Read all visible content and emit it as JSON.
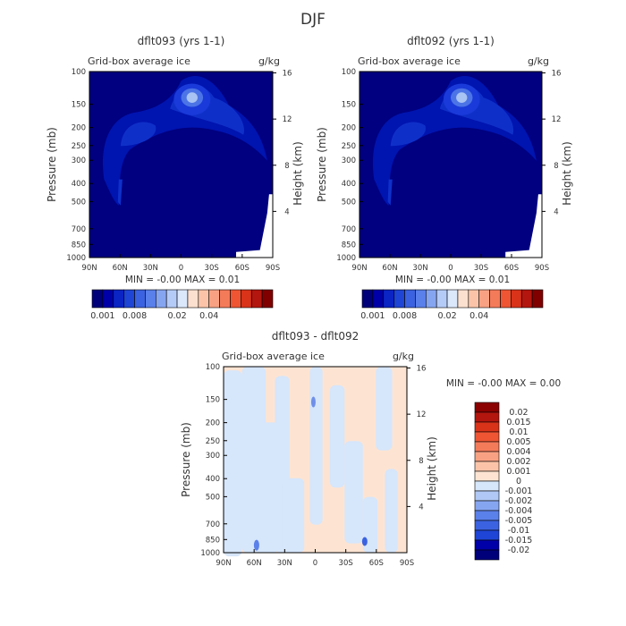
{
  "figure": {
    "title": "DJF"
  },
  "chart_data": [
    {
      "type": "heatmap",
      "title": "dflt093 (yrs 1-1)",
      "subtitle": "Grid-box average ice",
      "units": "g/kg",
      "ylabel": "Pressure (mb)",
      "y2label": "Height (km)",
      "xticks": [
        "90N",
        "60N",
        "30N",
        "0",
        "30S",
        "60S",
        "90S"
      ],
      "yticks": [
        "100",
        "150",
        "200",
        "250",
        "300",
        "400",
        "500",
        "700",
        "850",
        "1000"
      ],
      "y2ticks": [
        "16",
        "12",
        "8",
        "4"
      ],
      "ylim": [
        1000,
        100
      ],
      "stats": "MIN = -0.00   MAX = 0.01",
      "colorbar_labels": [
        "0.001",
        "0.008",
        "0.02",
        "0.04"
      ],
      "colorbar_colors": [
        "#00007a",
        "#0000a8",
        "#0b24c4",
        "#1f45d6",
        "#3b62e0",
        "#5a80ea",
        "#86a5f1",
        "#b5cbf7",
        "#dbe7fb",
        "#fbe0cf",
        "#fbc4a8",
        "#f8a283",
        "#f47b5a",
        "#ef5533",
        "#d9331a",
        "#b3160e",
        "#800000"
      ],
      "colors": {
        "background": "#000080",
        "core": "#1a3ad9",
        "peak": "#a9c3f2"
      }
    },
    {
      "type": "heatmap",
      "title": "dflt092 (yrs 1-1)",
      "subtitle": "Grid-box average ice",
      "units": "g/kg",
      "ylabel": "Pressure (mb)",
      "y2label": "Height (km)",
      "xticks": [
        "90N",
        "60N",
        "30N",
        "0",
        "30S",
        "60S",
        "90S"
      ],
      "yticks": [
        "100",
        "150",
        "200",
        "250",
        "300",
        "400",
        "500",
        "700",
        "850",
        "1000"
      ],
      "y2ticks": [
        "16",
        "12",
        "8",
        "4"
      ],
      "ylim": [
        1000,
        100
      ],
      "stats": "MIN = -0.00   MAX = 0.01",
      "colorbar_labels": [
        "0.001",
        "0.008",
        "0.02",
        "0.04"
      ],
      "colorbar_colors": [
        "#00007a",
        "#0000a8",
        "#0b24c4",
        "#1f45d6",
        "#3b62e0",
        "#5a80ea",
        "#86a5f1",
        "#b5cbf7",
        "#dbe7fb",
        "#fbe0cf",
        "#fbc4a8",
        "#f8a283",
        "#f47b5a",
        "#ef5533",
        "#d9331a",
        "#b3160e",
        "#800000"
      ],
      "colors": {
        "background": "#000080",
        "core": "#1a3ad9",
        "peak": "#a9c3f2"
      }
    },
    {
      "type": "heatmap",
      "title": "dflt093 - dflt092",
      "subtitle": "Grid-box average ice",
      "units": "g/kg",
      "ylabel": "Pressure (mb)",
      "y2label": "Height (km)",
      "xticks": [
        "90N",
        "60N",
        "30N",
        "0",
        "30S",
        "60S",
        "90S"
      ],
      "yticks": [
        "100",
        "150",
        "200",
        "250",
        "300",
        "400",
        "500",
        "700",
        "850",
        "1000"
      ],
      "y2ticks": [
        "16",
        "12",
        "8",
        "4"
      ],
      "ylim": [
        1000,
        100
      ],
      "stats": "MIN = -0.00   MAX = 0.00",
      "legend_labels": [
        "0.02",
        "0.015",
        "0.01",
        "0.005",
        "0.004",
        "0.002",
        "0.001",
        "0",
        "-0.001",
        "-0.002",
        "-0.004",
        "-0.005",
        "-0.01",
        "-0.015",
        "-0.02"
      ],
      "legend_colors": [
        "#8b0000",
        "#b3160e",
        "#d9331a",
        "#ef5533",
        "#f47b5a",
        "#f8a283",
        "#fbc4a8",
        "#fde4d2",
        "#d6e6fb",
        "#b0c8f5",
        "#86a5f1",
        "#5a80ea",
        "#3b62e0",
        "#1f45d6",
        "#0000a8",
        "#00007a"
      ],
      "colors": {
        "base": "#fde4d2",
        "neg": "#d6e6fb",
        "blip": "#6f8fe8"
      }
    }
  ]
}
